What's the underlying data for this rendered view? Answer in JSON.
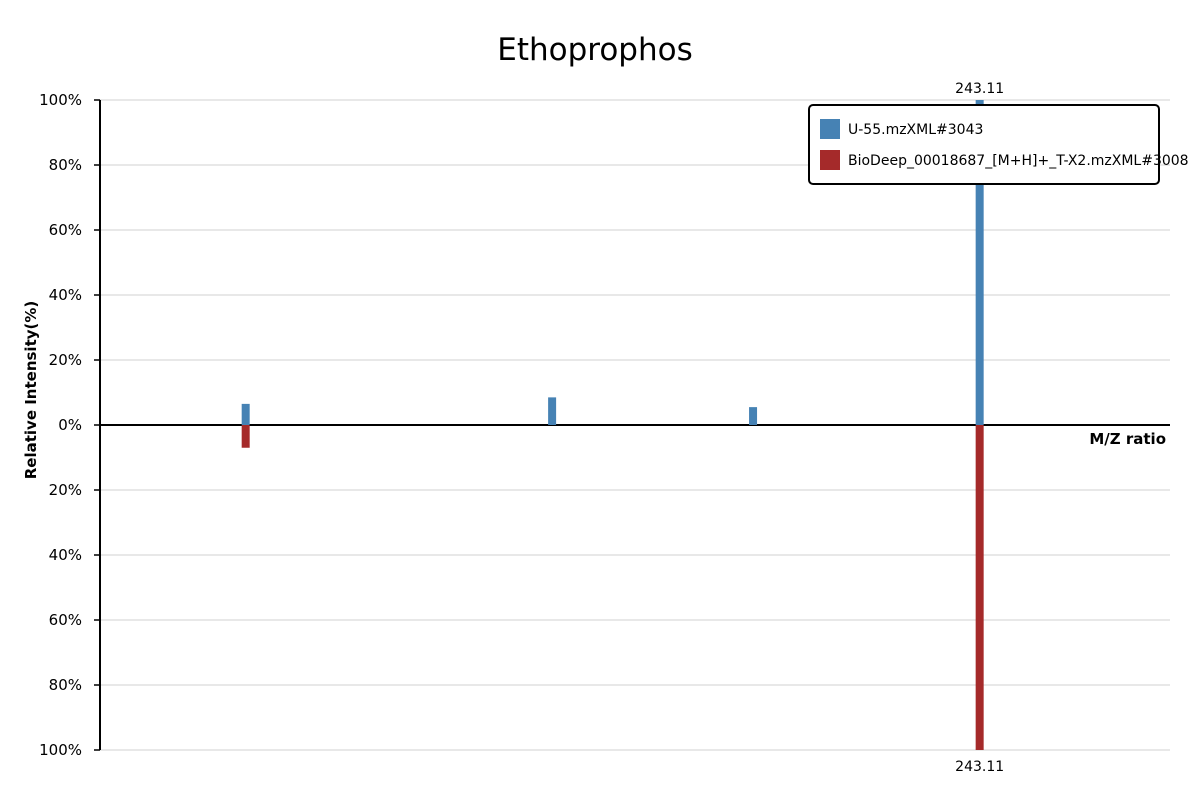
{
  "chart_data": {
    "type": "bar",
    "subtype": "mirror-spectrum",
    "title": "Ethoprophos",
    "xlabel": "M/Z ratio",
    "ylabel": "Relative Intensity(%)",
    "ylim_top": [
      0,
      100
    ],
    "ylim_bottom": [
      0,
      100
    ],
    "y_ticks_top": [
      "100%",
      "80%",
      "60%",
      "40%",
      "20%",
      "0%"
    ],
    "y_ticks_bottom": [
      "20%",
      "40%",
      "60%",
      "80%",
      "100%"
    ],
    "grid": true,
    "legend_position": "top-right",
    "series": [
      {
        "name": "U-55.mzXML#3043",
        "color": "#4682b4",
        "direction": "up",
        "peaks": [
          {
            "mz": 97.0,
            "intensity": 6.5
          },
          {
            "mz": 158.0,
            "intensity": 8.5
          },
          {
            "mz": 198.0,
            "intensity": 5.5
          },
          {
            "mz": 243.11,
            "intensity": 100
          }
        ]
      },
      {
        "name": "BioDeep_00018687_[M+H]+_T-X2.mzXML#3008",
        "color": "#a52a2a",
        "direction": "down",
        "peaks": [
          {
            "mz": 97.0,
            "intensity": 7
          },
          {
            "mz": 243.11,
            "intensity": 100
          }
        ]
      }
    ],
    "annotations": [
      {
        "text": "243.11",
        "series": 0,
        "mz": 243.11
      },
      {
        "text": "243.11",
        "series": 1,
        "mz": 243.11
      }
    ],
    "xlim": [
      68,
      281
    ]
  }
}
